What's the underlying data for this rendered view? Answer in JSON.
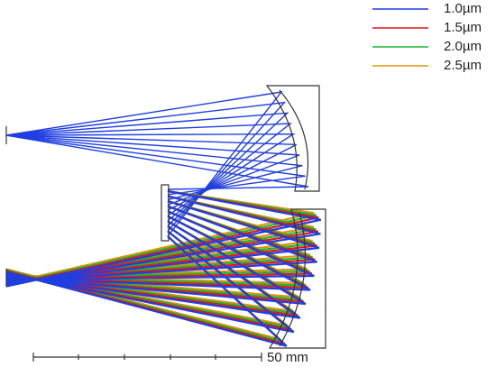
{
  "legend": [
    {
      "label": "1.0µm",
      "color": "#1f3fe0"
    },
    {
      "label": "1.5µm",
      "color": "#e01818"
    },
    {
      "label": "2.0µm",
      "color": "#18b830"
    },
    {
      "label": "2.5µm",
      "color": "#e09010"
    }
  ],
  "scale_bar": {
    "label": "50 mm"
  }
}
